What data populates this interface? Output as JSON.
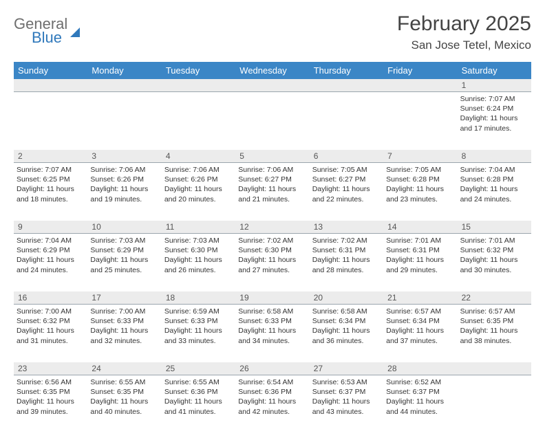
{
  "logo": {
    "line1": "General",
    "line2": "Blue"
  },
  "header": {
    "title": "February 2025",
    "location": "San Jose Tetel, Mexico"
  },
  "colors": {
    "header_bg": "#3b86c6",
    "header_text": "#ffffff",
    "datenum_bg": "#ececec",
    "cell_border": "#9aa5ad",
    "text": "#333333",
    "logo_gray": "#6e6e6e",
    "logo_blue": "#2f78bb"
  },
  "dayNames": [
    "Sunday",
    "Monday",
    "Tuesday",
    "Wednesday",
    "Thursday",
    "Friday",
    "Saturday"
  ],
  "weeks": [
    {
      "nums": [
        "",
        "",
        "",
        "",
        "",
        "",
        "1"
      ],
      "cells": [
        null,
        null,
        null,
        null,
        null,
        null,
        {
          "sunrise": "Sunrise: 7:07 AM",
          "sunset": "Sunset: 6:24 PM",
          "day1": "Daylight: 11 hours",
          "day2": "and 17 minutes."
        }
      ]
    },
    {
      "nums": [
        "2",
        "3",
        "4",
        "5",
        "6",
        "7",
        "8"
      ],
      "cells": [
        {
          "sunrise": "Sunrise: 7:07 AM",
          "sunset": "Sunset: 6:25 PM",
          "day1": "Daylight: 11 hours",
          "day2": "and 18 minutes."
        },
        {
          "sunrise": "Sunrise: 7:06 AM",
          "sunset": "Sunset: 6:26 PM",
          "day1": "Daylight: 11 hours",
          "day2": "and 19 minutes."
        },
        {
          "sunrise": "Sunrise: 7:06 AM",
          "sunset": "Sunset: 6:26 PM",
          "day1": "Daylight: 11 hours",
          "day2": "and 20 minutes."
        },
        {
          "sunrise": "Sunrise: 7:06 AM",
          "sunset": "Sunset: 6:27 PM",
          "day1": "Daylight: 11 hours",
          "day2": "and 21 minutes."
        },
        {
          "sunrise": "Sunrise: 7:05 AM",
          "sunset": "Sunset: 6:27 PM",
          "day1": "Daylight: 11 hours",
          "day2": "and 22 minutes."
        },
        {
          "sunrise": "Sunrise: 7:05 AM",
          "sunset": "Sunset: 6:28 PM",
          "day1": "Daylight: 11 hours",
          "day2": "and 23 minutes."
        },
        {
          "sunrise": "Sunrise: 7:04 AM",
          "sunset": "Sunset: 6:28 PM",
          "day1": "Daylight: 11 hours",
          "day2": "and 24 minutes."
        }
      ]
    },
    {
      "nums": [
        "9",
        "10",
        "11",
        "12",
        "13",
        "14",
        "15"
      ],
      "cells": [
        {
          "sunrise": "Sunrise: 7:04 AM",
          "sunset": "Sunset: 6:29 PM",
          "day1": "Daylight: 11 hours",
          "day2": "and 24 minutes."
        },
        {
          "sunrise": "Sunrise: 7:03 AM",
          "sunset": "Sunset: 6:29 PM",
          "day1": "Daylight: 11 hours",
          "day2": "and 25 minutes."
        },
        {
          "sunrise": "Sunrise: 7:03 AM",
          "sunset": "Sunset: 6:30 PM",
          "day1": "Daylight: 11 hours",
          "day2": "and 26 minutes."
        },
        {
          "sunrise": "Sunrise: 7:02 AM",
          "sunset": "Sunset: 6:30 PM",
          "day1": "Daylight: 11 hours",
          "day2": "and 27 minutes."
        },
        {
          "sunrise": "Sunrise: 7:02 AM",
          "sunset": "Sunset: 6:31 PM",
          "day1": "Daylight: 11 hours",
          "day2": "and 28 minutes."
        },
        {
          "sunrise": "Sunrise: 7:01 AM",
          "sunset": "Sunset: 6:31 PM",
          "day1": "Daylight: 11 hours",
          "day2": "and 29 minutes."
        },
        {
          "sunrise": "Sunrise: 7:01 AM",
          "sunset": "Sunset: 6:32 PM",
          "day1": "Daylight: 11 hours",
          "day2": "and 30 minutes."
        }
      ]
    },
    {
      "nums": [
        "16",
        "17",
        "18",
        "19",
        "20",
        "21",
        "22"
      ],
      "cells": [
        {
          "sunrise": "Sunrise: 7:00 AM",
          "sunset": "Sunset: 6:32 PM",
          "day1": "Daylight: 11 hours",
          "day2": "and 31 minutes."
        },
        {
          "sunrise": "Sunrise: 7:00 AM",
          "sunset": "Sunset: 6:33 PM",
          "day1": "Daylight: 11 hours",
          "day2": "and 32 minutes."
        },
        {
          "sunrise": "Sunrise: 6:59 AM",
          "sunset": "Sunset: 6:33 PM",
          "day1": "Daylight: 11 hours",
          "day2": "and 33 minutes."
        },
        {
          "sunrise": "Sunrise: 6:58 AM",
          "sunset": "Sunset: 6:33 PM",
          "day1": "Daylight: 11 hours",
          "day2": "and 34 minutes."
        },
        {
          "sunrise": "Sunrise: 6:58 AM",
          "sunset": "Sunset: 6:34 PM",
          "day1": "Daylight: 11 hours",
          "day2": "and 36 minutes."
        },
        {
          "sunrise": "Sunrise: 6:57 AM",
          "sunset": "Sunset: 6:34 PM",
          "day1": "Daylight: 11 hours",
          "day2": "and 37 minutes."
        },
        {
          "sunrise": "Sunrise: 6:57 AM",
          "sunset": "Sunset: 6:35 PM",
          "day1": "Daylight: 11 hours",
          "day2": "and 38 minutes."
        }
      ]
    },
    {
      "nums": [
        "23",
        "24",
        "25",
        "26",
        "27",
        "28",
        ""
      ],
      "cells": [
        {
          "sunrise": "Sunrise: 6:56 AM",
          "sunset": "Sunset: 6:35 PM",
          "day1": "Daylight: 11 hours",
          "day2": "and 39 minutes."
        },
        {
          "sunrise": "Sunrise: 6:55 AM",
          "sunset": "Sunset: 6:35 PM",
          "day1": "Daylight: 11 hours",
          "day2": "and 40 minutes."
        },
        {
          "sunrise": "Sunrise: 6:55 AM",
          "sunset": "Sunset: 6:36 PM",
          "day1": "Daylight: 11 hours",
          "day2": "and 41 minutes."
        },
        {
          "sunrise": "Sunrise: 6:54 AM",
          "sunset": "Sunset: 6:36 PM",
          "day1": "Daylight: 11 hours",
          "day2": "and 42 minutes."
        },
        {
          "sunrise": "Sunrise: 6:53 AM",
          "sunset": "Sunset: 6:37 PM",
          "day1": "Daylight: 11 hours",
          "day2": "and 43 minutes."
        },
        {
          "sunrise": "Sunrise: 6:52 AM",
          "sunset": "Sunset: 6:37 PM",
          "day1": "Daylight: 11 hours",
          "day2": "and 44 minutes."
        },
        null
      ]
    }
  ]
}
